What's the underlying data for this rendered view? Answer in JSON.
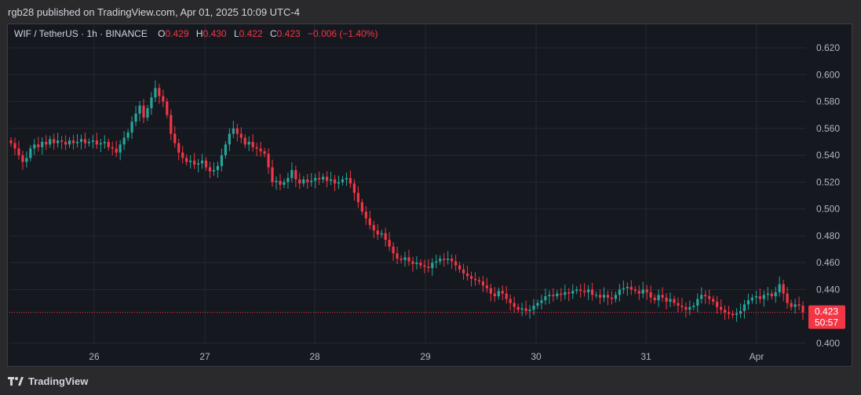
{
  "attribution": "rgb28 published on TradingView.com, Apr 01, 2025 10:09 UTC-4",
  "legend": {
    "symbol": "WIF / TetherUS · 1h · BINANCE",
    "o_label": "O",
    "o_value": "0.429",
    "h_label": "H",
    "h_value": "0.430",
    "l_label": "L",
    "l_value": "0.422",
    "c_label": "C",
    "c_value": "0.423",
    "change": "−0.006 (−1.40%)"
  },
  "price_tag": {
    "price": "0.423",
    "countdown": "50:57"
  },
  "footer": {
    "brand": "TradingView"
  },
  "colors": {
    "up": "#26a69a",
    "down": "#f23645",
    "background": "#16181f",
    "grid": "#252833",
    "axis_text": "#b2b5be"
  },
  "chart_data": {
    "type": "candlestick",
    "title": "",
    "ylim": [
      0.4,
      0.63
    ],
    "y_ticks": [
      "0.620",
      "0.600",
      "0.580",
      "0.560",
      "0.540",
      "0.520",
      "0.500",
      "0.480",
      "0.460",
      "0.440",
      "0.400"
    ],
    "y_tick_values": [
      0.62,
      0.6,
      0.58,
      0.56,
      0.54,
      0.52,
      0.5,
      0.48,
      0.46,
      0.44,
      0.4
    ],
    "x_ticks": [
      "26",
      "27",
      "28",
      "29",
      "30",
      "31",
      "Apr"
    ],
    "grid": true,
    "last_price": 0.423,
    "series": [
      {
        "name": "WIF / TetherUS",
        "close_path": [
          0.549,
          0.545,
          0.54,
          0.535,
          0.538,
          0.545,
          0.548,
          0.546,
          0.55,
          0.548,
          0.552,
          0.549,
          0.551,
          0.55,
          0.548,
          0.551,
          0.549,
          0.55,
          0.552,
          0.549,
          0.55,
          0.551,
          0.548,
          0.549,
          0.55,
          0.546,
          0.545,
          0.542,
          0.548,
          0.553,
          0.557,
          0.565,
          0.571,
          0.577,
          0.568,
          0.575,
          0.583,
          0.59,
          0.584,
          0.58,
          0.57,
          0.556,
          0.549,
          0.542,
          0.538,
          0.535,
          0.536,
          0.533,
          0.534,
          0.536,
          0.531,
          0.528,
          0.529,
          0.532,
          0.54,
          0.548,
          0.556,
          0.56,
          0.556,
          0.553,
          0.548,
          0.55,
          0.546,
          0.545,
          0.543,
          0.541,
          0.531,
          0.52,
          0.521,
          0.518,
          0.52,
          0.523,
          0.529,
          0.522,
          0.519,
          0.522,
          0.52,
          0.521,
          0.523,
          0.522,
          0.524,
          0.521,
          0.522,
          0.519,
          0.52,
          0.522,
          0.523,
          0.519,
          0.512,
          0.505,
          0.498,
          0.493,
          0.488,
          0.484,
          0.481,
          0.482,
          0.477,
          0.472,
          0.467,
          0.463,
          0.462,
          0.464,
          0.461,
          0.459,
          0.46,
          0.458,
          0.457,
          0.456,
          0.46,
          0.461,
          0.463,
          0.462,
          0.463,
          0.461,
          0.458,
          0.455,
          0.452,
          0.45,
          0.448,
          0.447,
          0.446,
          0.443,
          0.441,
          0.437,
          0.435,
          0.439,
          0.437,
          0.433,
          0.43,
          0.427,
          0.425,
          0.426,
          0.424,
          0.425,
          0.428,
          0.43,
          0.432,
          0.435,
          0.436,
          0.435,
          0.437,
          0.436,
          0.438,
          0.437,
          0.439,
          0.44,
          0.439,
          0.438,
          0.44,
          0.436,
          0.436,
          0.434,
          0.436,
          0.434,
          0.433,
          0.436,
          0.44,
          0.441,
          0.442,
          0.44,
          0.439,
          0.437,
          0.44,
          0.438,
          0.434,
          0.432,
          0.436,
          0.434,
          0.431,
          0.433,
          0.43,
          0.428,
          0.427,
          0.425,
          0.427,
          0.428,
          0.433,
          0.436,
          0.435,
          0.433,
          0.431,
          0.427,
          0.425,
          0.423,
          0.422,
          0.421,
          0.422,
          0.424,
          0.429,
          0.432,
          0.434,
          0.435,
          0.433,
          0.436,
          0.437,
          0.435,
          0.438,
          0.444,
          0.437,
          0.43,
          0.427,
          0.429,
          0.428,
          0.423
        ]
      }
    ]
  }
}
